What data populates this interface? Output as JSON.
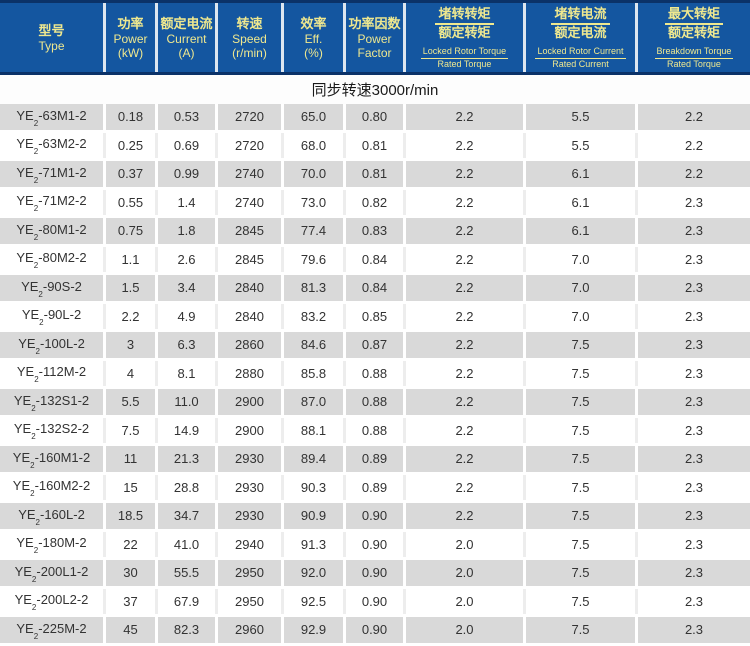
{
  "theme": {
    "header_bg": "#1456a0",
    "header_edge": "#0b3268",
    "header_text": "#efe88f",
    "header_divider": "#dde6f0",
    "row_gray": "#d9d9d9",
    "row_white": "#ffffff",
    "data_text": "#333333",
    "section_text": "#1a1a1a"
  },
  "table": {
    "section_label": "同步转速3000r/min",
    "model_prefix": "YE",
    "model_subscript": "2",
    "columns": [
      {
        "kind": "simple",
        "lines": [
          "型号",
          "Type"
        ]
      },
      {
        "kind": "simple",
        "lines": [
          "功率",
          "Power",
          "(kW)"
        ]
      },
      {
        "kind": "simple",
        "lines": [
          "额定电流",
          "Current",
          "(A)"
        ]
      },
      {
        "kind": "simple",
        "lines": [
          "转速",
          "Speed",
          "(r/min)"
        ]
      },
      {
        "kind": "simple",
        "lines": [
          "效率",
          "Eff.",
          "(%)"
        ]
      },
      {
        "kind": "simple",
        "lines": [
          "功率因数",
          "Power",
          "Factor"
        ]
      },
      {
        "kind": "fraction",
        "zh_top": "堵转转矩",
        "zh_bottom": "额定转矩",
        "en_top": "Locked Rotor Torque",
        "en_bottom": "Rated Torque"
      },
      {
        "kind": "fraction",
        "zh_top": "堵转电流",
        "zh_bottom": "额定电流",
        "en_top": "Locked Rotor Current",
        "en_bottom": "Rated Current"
      },
      {
        "kind": "fraction",
        "zh_top": "最大转矩",
        "zh_bottom": "额定转矩",
        "en_top": "Breakdown Torque",
        "en_bottom": "Rated Torque"
      }
    ],
    "rows": [
      {
        "model": "-63M1-2",
        "values": [
          "0.18",
          "0.53",
          "2720",
          "65.0",
          "0.80",
          "2.2",
          "5.5",
          "2.2"
        ]
      },
      {
        "model": "-63M2-2",
        "values": [
          "0.25",
          "0.69",
          "2720",
          "68.0",
          "0.81",
          "2.2",
          "5.5",
          "2.2"
        ]
      },
      {
        "model": "-71M1-2",
        "values": [
          "0.37",
          "0.99",
          "2740",
          "70.0",
          "0.81",
          "2.2",
          "6.1",
          "2.2"
        ]
      },
      {
        "model": "-71M2-2",
        "values": [
          "0.55",
          "1.4",
          "2740",
          "73.0",
          "0.82",
          "2.2",
          "6.1",
          "2.3"
        ]
      },
      {
        "model": "-80M1-2",
        "values": [
          "0.75",
          "1.8",
          "2845",
          "77.4",
          "0.83",
          "2.2",
          "6.1",
          "2.3"
        ]
      },
      {
        "model": "-80M2-2",
        "values": [
          "1.1",
          "2.6",
          "2845",
          "79.6",
          "0.84",
          "2.2",
          "7.0",
          "2.3"
        ]
      },
      {
        "model": "-90S-2",
        "values": [
          "1.5",
          "3.4",
          "2840",
          "81.3",
          "0.84",
          "2.2",
          "7.0",
          "2.3"
        ]
      },
      {
        "model": "-90L-2",
        "values": [
          "2.2",
          "4.9",
          "2840",
          "83.2",
          "0.85",
          "2.2",
          "7.0",
          "2.3"
        ]
      },
      {
        "model": "-100L-2",
        "values": [
          "3",
          "6.3",
          "2860",
          "84.6",
          "0.87",
          "2.2",
          "7.5",
          "2.3"
        ]
      },
      {
        "model": "-112M-2",
        "values": [
          "4",
          "8.1",
          "2880",
          "85.8",
          "0.88",
          "2.2",
          "7.5",
          "2.3"
        ]
      },
      {
        "model": "-132S1-2",
        "values": [
          "5.5",
          "11.0",
          "2900",
          "87.0",
          "0.88",
          "2.2",
          "7.5",
          "2.3"
        ]
      },
      {
        "model": "-132S2-2",
        "values": [
          "7.5",
          "14.9",
          "2900",
          "88.1",
          "0.88",
          "2.2",
          "7.5",
          "2.3"
        ]
      },
      {
        "model": "-160M1-2",
        "values": [
          "11",
          "21.3",
          "2930",
          "89.4",
          "0.89",
          "2.2",
          "7.5",
          "2.3"
        ]
      },
      {
        "model": "-160M2-2",
        "values": [
          "15",
          "28.8",
          "2930",
          "90.3",
          "0.89",
          "2.2",
          "7.5",
          "2.3"
        ]
      },
      {
        "model": "-160L-2",
        "values": [
          "18.5",
          "34.7",
          "2930",
          "90.9",
          "0.90",
          "2.2",
          "7.5",
          "2.3"
        ]
      },
      {
        "model": "-180M-2",
        "values": [
          "22",
          "41.0",
          "2940",
          "91.3",
          "0.90",
          "2.0",
          "7.5",
          "2.3"
        ]
      },
      {
        "model": "-200L1-2",
        "values": [
          "30",
          "55.5",
          "2950",
          "92.0",
          "0.90",
          "2.0",
          "7.5",
          "2.3"
        ]
      },
      {
        "model": "-200L2-2",
        "values": [
          "37",
          "67.9",
          "2950",
          "92.5",
          "0.90",
          "2.0",
          "7.5",
          "2.3"
        ]
      },
      {
        "model": "-225M-2",
        "values": [
          "45",
          "82.3",
          "2960",
          "92.9",
          "0.90",
          "2.0",
          "7.5",
          "2.3"
        ]
      }
    ]
  }
}
